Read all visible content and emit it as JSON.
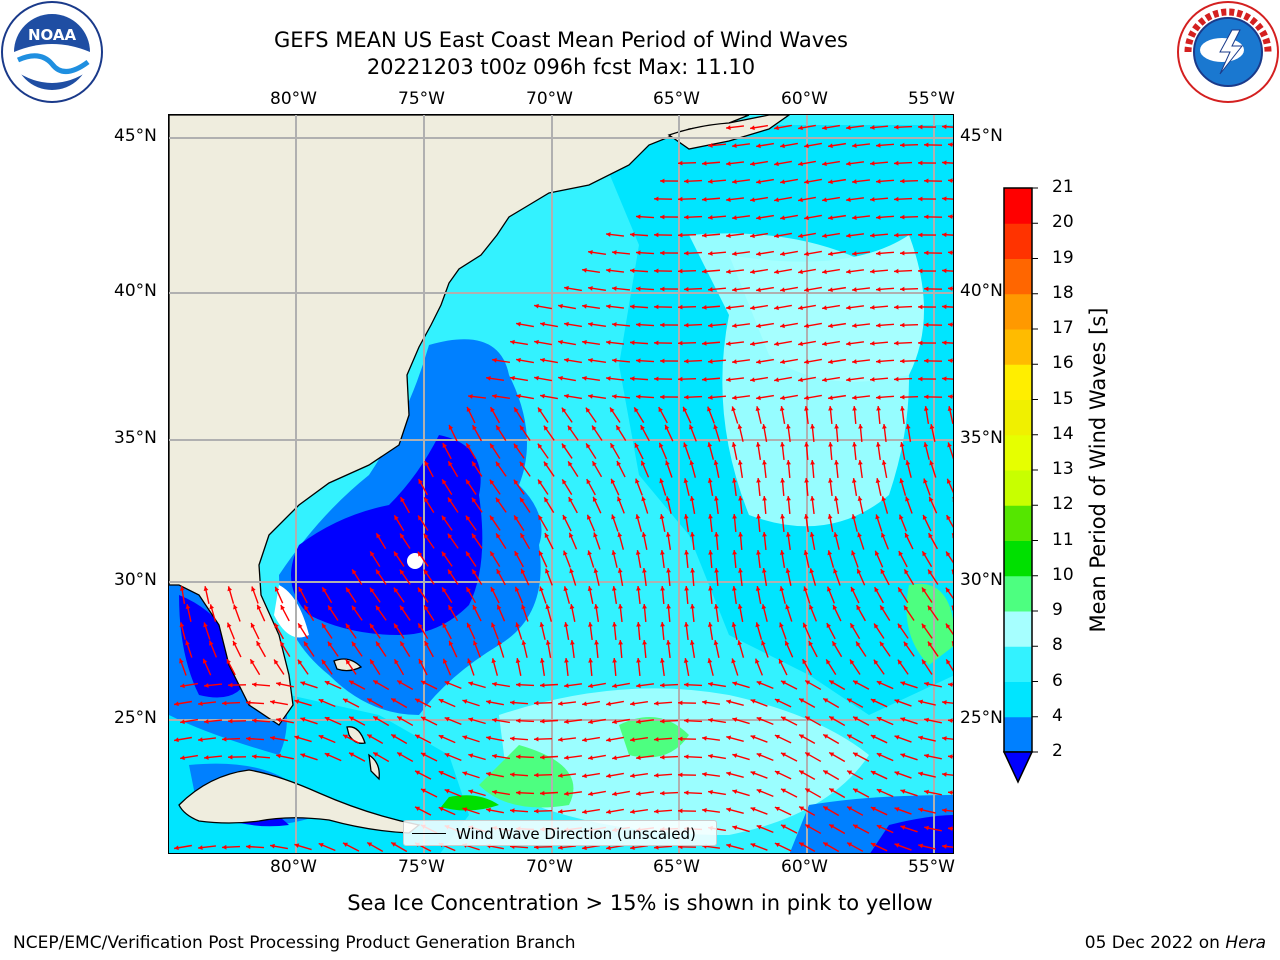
{
  "header": {
    "title_line1": "GEFS MEAN US East Coast Mean Period of Wind Waves",
    "title_line2": "20221203 t00z 096h fcst   Max: 11.10"
  },
  "logos": {
    "left": {
      "icon": "noaa-logo-icon",
      "text": "NOAA",
      "ring_text": "NATIONAL OCEANIC AND ATMOSPHERIC ADMINISTRATION · U.S. DEPARTMENT OF COMMERCE"
    },
    "right": {
      "icon": "nws-logo-icon",
      "ring_text": "NATIONAL WEATHER SERVICE"
    }
  },
  "map": {
    "lon_labels": [
      "80°W",
      "75°W",
      "70°W",
      "65°W",
      "60°W",
      "55°W"
    ],
    "lat_labels": [
      "45°N",
      "40°N",
      "35°N",
      "30°N",
      "25°N"
    ],
    "legend_label": "Wind Wave Direction (unscaled)",
    "arrow_color": "#ff0000",
    "land_color": "#efedde",
    "grid_color": "#b0b0b0"
  },
  "colorbar": {
    "title": "Mean Period of Wind Waves [s]",
    "tick_labels": [
      "2",
      "4",
      "6",
      "8",
      "9",
      "10",
      "11",
      "12",
      "13",
      "14",
      "15",
      "16",
      "17",
      "18",
      "19",
      "20",
      "21"
    ],
    "bands": [
      {
        "from": 2,
        "to": 4,
        "color": "#0080ff"
      },
      {
        "from": 4,
        "to": 6,
        "color": "#00e5ff"
      },
      {
        "from": 6,
        "to": 8,
        "color": "#33f2ff"
      },
      {
        "from": 8,
        "to": 9,
        "color": "#a6ffff"
      },
      {
        "from": 9,
        "to": 10,
        "color": "#4dff80"
      },
      {
        "from": 10,
        "to": 11,
        "color": "#00e000"
      },
      {
        "from": 11,
        "to": 12,
        "color": "#55e600"
      },
      {
        "from": 12,
        "to": 13,
        "color": "#c8ff00"
      },
      {
        "from": 13,
        "to": 14,
        "color": "#e6ff00"
      },
      {
        "from": 14,
        "to": 15,
        "color": "#f0f000"
      },
      {
        "from": 15,
        "to": 16,
        "color": "#ffee00"
      },
      {
        "from": 16,
        "to": 17,
        "color": "#ffbb00"
      },
      {
        "from": 17,
        "to": 18,
        "color": "#ff9900"
      },
      {
        "from": 18,
        "to": 19,
        "color": "#ff6600"
      },
      {
        "from": 19,
        "to": 20,
        "color": "#ff3300"
      },
      {
        "from": 20,
        "to": 21,
        "color": "#ff0000"
      }
    ],
    "under_color": "#0000ff"
  },
  "notes": {
    "ice": "Sea Ice Concentration > 15% is shown in pink to yellow"
  },
  "footer": {
    "left": "NCEP/EMC/Verification Post Processing Product Generation Branch",
    "right_date": "05 Dec 2022 on",
    "right_host": "Hera"
  }
}
